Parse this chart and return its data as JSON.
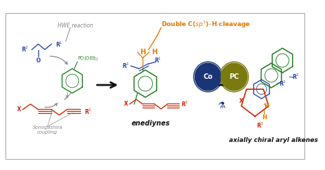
{
  "bg_color": "#ffffff",
  "border_color": "#aaaaaa",
  "colors": {
    "blue": "#2244aa",
    "green": "#1a7a1a",
    "red": "#cc2200",
    "orange": "#e07800",
    "gray": "#888888",
    "cobalt_blue": "#1a3575",
    "olive": "#7a7a10",
    "black": "#111111",
    "white": "#ffffff"
  },
  "text": {
    "hwe": "HWE reaction",
    "sonogashira": "Sonogashira\ncoupling",
    "enediynes": "enediynes",
    "axially_chiral": "axially chiral aryl alkenes",
    "double_cleavage": "Double C($sp^3$)–H cleavage",
    "co": "Co",
    "pc": "PC"
  }
}
